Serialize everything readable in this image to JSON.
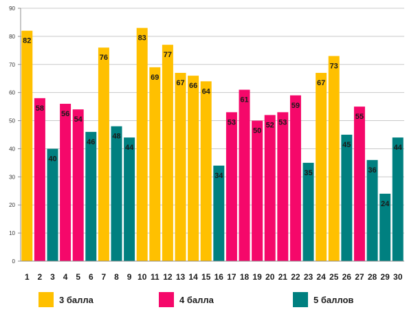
{
  "chart_data": {
    "type": "bar",
    "categories": [
      "1",
      "2",
      "3",
      "4",
      "5",
      "6",
      "7",
      "8",
      "9",
      "10",
      "11",
      "12",
      "13",
      "14",
      "15",
      "16",
      "17",
      "18",
      "19",
      "20",
      "21",
      "22",
      "23",
      "24",
      "25",
      "26",
      "27",
      "28",
      "29",
      "30"
    ],
    "values": [
      82,
      58,
      40,
      56,
      54,
      46,
      76,
      48,
      44,
      83,
      69,
      77,
      67,
      66,
      64,
      34,
      53,
      61,
      50,
      52,
      53,
      59,
      35,
      67,
      73,
      45,
      55,
      36,
      24,
      44
    ],
    "groups": [
      0,
      1,
      2,
      1,
      1,
      2,
      0,
      2,
      2,
      0,
      0,
      0,
      0,
      0,
      0,
      2,
      1,
      1,
      1,
      1,
      1,
      1,
      2,
      0,
      0,
      2,
      1,
      2,
      2,
      2
    ],
    "ylim": [
      0,
      90
    ],
    "yticks": [
      "0",
      "10",
      "20",
      "30",
      "40",
      "50",
      "60",
      "70",
      "80",
      "90"
    ],
    "grid": true,
    "legend_position": "bottom",
    "title": "",
    "xlabel": "",
    "ylabel": ""
  },
  "legend": [
    {
      "label": "3 балла",
      "color": "#FFC000"
    },
    {
      "label": "4 балла",
      "color": "#F5086A"
    },
    {
      "label": "5 баллов",
      "color": "#008080"
    }
  ]
}
